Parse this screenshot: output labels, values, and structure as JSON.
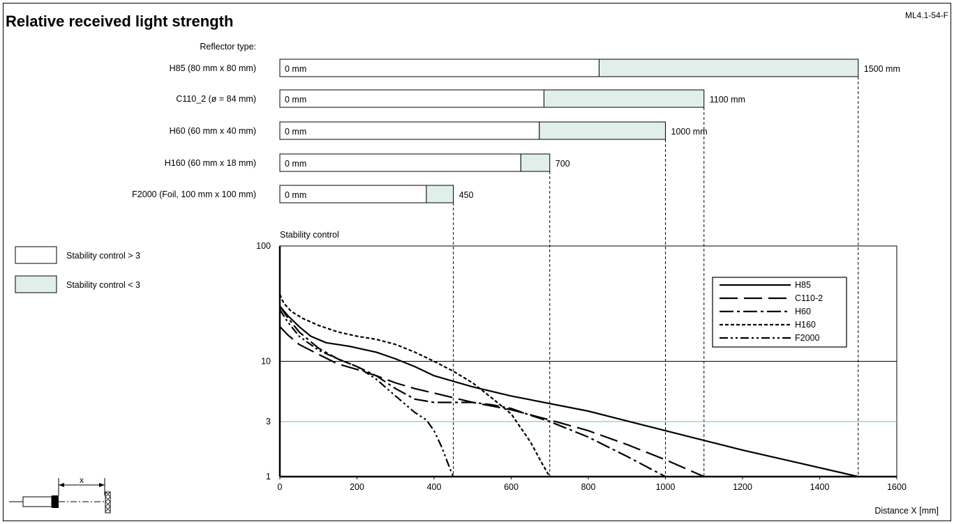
{
  "page_title": "Relative received light strength",
  "doc_code": "ML4.1-54-F",
  "reflector_header": "Reflector type:",
  "colors": {
    "stable": "#ffffff",
    "unstable": "#e0efec",
    "threshold_line": "#7fcfc4",
    "ink": "#000000"
  },
  "legend_boxes": [
    {
      "label": "Stability control > 3",
      "color_key": "stable"
    },
    {
      "label": "Stability control < 3",
      "color_key": "unstable"
    }
  ],
  "chart_data": [
    {
      "type": "bar",
      "orientation": "horizontal-stacked",
      "xscale": [
        0,
        1600
      ],
      "categories": [
        "H85 (80 mm x 80 mm)",
        "C110_2 (ø = 84 mm)",
        "H60 (60 mm x 40 mm)",
        "H160 (60 mm x 18 mm)",
        "F2000 (Foil, 100 mm x 100 mm)"
      ],
      "start_labels": [
        "0 mm",
        "0 mm",
        "0 mm",
        "0 mm",
        "0 mm"
      ],
      "end_labels": [
        "1500 mm",
        "1100 mm",
        "1000 mm",
        "700",
        "450"
      ],
      "stable_to": [
        828,
        685,
        673,
        625,
        380
      ],
      "range_to": [
        1500,
        1100,
        1000,
        700,
        450
      ]
    },
    {
      "type": "line",
      "title": "Stability control",
      "xlabel": "Distance X [mm]",
      "xlim": [
        0,
        1600
      ],
      "xticks": [
        0,
        200,
        400,
        600,
        800,
        1000,
        1200,
        1400,
        1600
      ],
      "yscale": "log",
      "ylim": [
        1,
        100
      ],
      "yticks": [
        1,
        3,
        10,
        100
      ],
      "threshold": 3,
      "legend_position": "upper-right",
      "series": [
        {
          "name": "H85",
          "dash": "solid",
          "x": [
            0,
            20,
            50,
            80,
            120,
            180,
            250,
            300,
            350,
            400,
            500,
            600,
            800,
            1000,
            1200,
            1500
          ],
          "y": [
            30,
            25,
            20,
            16.5,
            14.5,
            13.5,
            12,
            10.5,
            9,
            7.5,
            6,
            5,
            3.7,
            2.5,
            1.7,
            1
          ]
        },
        {
          "name": "C110-2",
          "dash": "longdash",
          "x": [
            0,
            20,
            50,
            100,
            150,
            200,
            250,
            300,
            350,
            400,
            500,
            600,
            700,
            800,
            900,
            1000,
            1100
          ],
          "y": [
            20,
            17,
            14,
            11.5,
            9.5,
            8.5,
            7.5,
            6.5,
            5.8,
            5.3,
            4.4,
            3.8,
            3.1,
            2.5,
            1.9,
            1.4,
            1
          ]
        },
        {
          "name": "H60",
          "dash": "dashdot",
          "x": [
            0,
            20,
            50,
            100,
            150,
            200,
            250,
            300,
            350,
            400,
            450,
            500,
            550,
            600,
            650,
            700,
            800,
            900,
            1000
          ],
          "y": [
            30,
            24,
            18,
            13,
            10.5,
            9,
            7.5,
            5.8,
            4.7,
            4.4,
            4.4,
            4.4,
            4.2,
            3.9,
            3.4,
            3,
            2.2,
            1.5,
            1
          ]
        },
        {
          "name": "H160",
          "dash": "dotted",
          "x": [
            0,
            10,
            30,
            60,
            100,
            150,
            200,
            250,
            300,
            350,
            400,
            450,
            500,
            550,
            600,
            650,
            680,
            700
          ],
          "y": [
            38,
            32,
            27,
            23.5,
            20.5,
            18,
            16.5,
            15.5,
            14,
            12,
            10,
            8.2,
            6.5,
            4.8,
            3.5,
            2,
            1.3,
            1
          ]
        },
        {
          "name": "F2000",
          "dash": "dashdotdot",
          "x": [
            0,
            20,
            50,
            100,
            150,
            200,
            250,
            300,
            350,
            380,
            400,
            420,
            440,
            450
          ],
          "y": [
            28,
            22,
            16.5,
            12.5,
            10.5,
            9,
            7,
            5,
            3.6,
            3.1,
            2.5,
            1.8,
            1.2,
            1
          ]
        }
      ]
    }
  ],
  "schematic": {
    "dimension_label": "x"
  }
}
